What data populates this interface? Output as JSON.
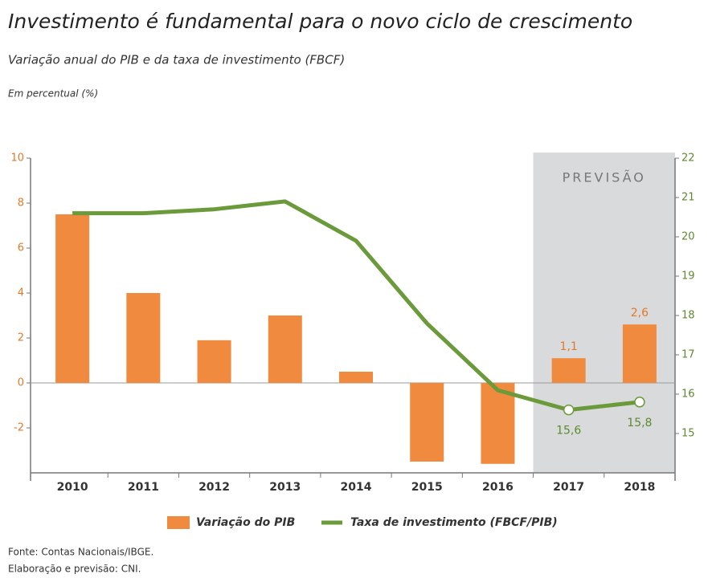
{
  "chart_data": {
    "type": "bar_line",
    "title": "Investimento é fundamental para o novo ciclo de crescimento",
    "subtitle": "Variação anual do PIB e da taxa de investimento (FBCF)",
    "unit_note": "Em percentual (%)",
    "categories": [
      "2010",
      "2011",
      "2012",
      "2013",
      "2014",
      "2015",
      "2016",
      "2017",
      "2018"
    ],
    "series": [
      {
        "name": "Variação do PIB",
        "color": "#ef8a3e",
        "kind": "bar",
        "axis": "y",
        "values": [
          7.5,
          4.0,
          1.9,
          3.0,
          0.5,
          -3.5,
          -3.6,
          1.1,
          2.6
        ],
        "value_labels": [
          null,
          null,
          null,
          null,
          null,
          null,
          null,
          "1,1",
          "2,6"
        ]
      },
      {
        "name": "Taxa de investimento (FBCF/PIB)",
        "color": "#6a9a3a",
        "kind": "line",
        "axis": "y2",
        "values": [
          20.6,
          20.6,
          20.7,
          20.9,
          19.9,
          17.8,
          16.1,
          15.6,
          15.8
        ],
        "value_labels": [
          null,
          null,
          null,
          null,
          null,
          null,
          null,
          "15,6",
          "15,8"
        ]
      }
    ],
    "ylim": [
      -4,
      10
    ],
    "yticks": [
      -2,
      0,
      2,
      4,
      6,
      8,
      10
    ],
    "y2lim": [
      14,
      22
    ],
    "y2ticks": [
      15,
      16,
      17,
      18,
      19,
      20,
      21,
      22
    ],
    "shaded_region": {
      "label": "PREVISÃO",
      "from": "2017",
      "to": "2018"
    },
    "sources": [
      "Fonte: Contas Nacionais/IBGE.",
      "Elaboração e previsão: CNI."
    ]
  }
}
